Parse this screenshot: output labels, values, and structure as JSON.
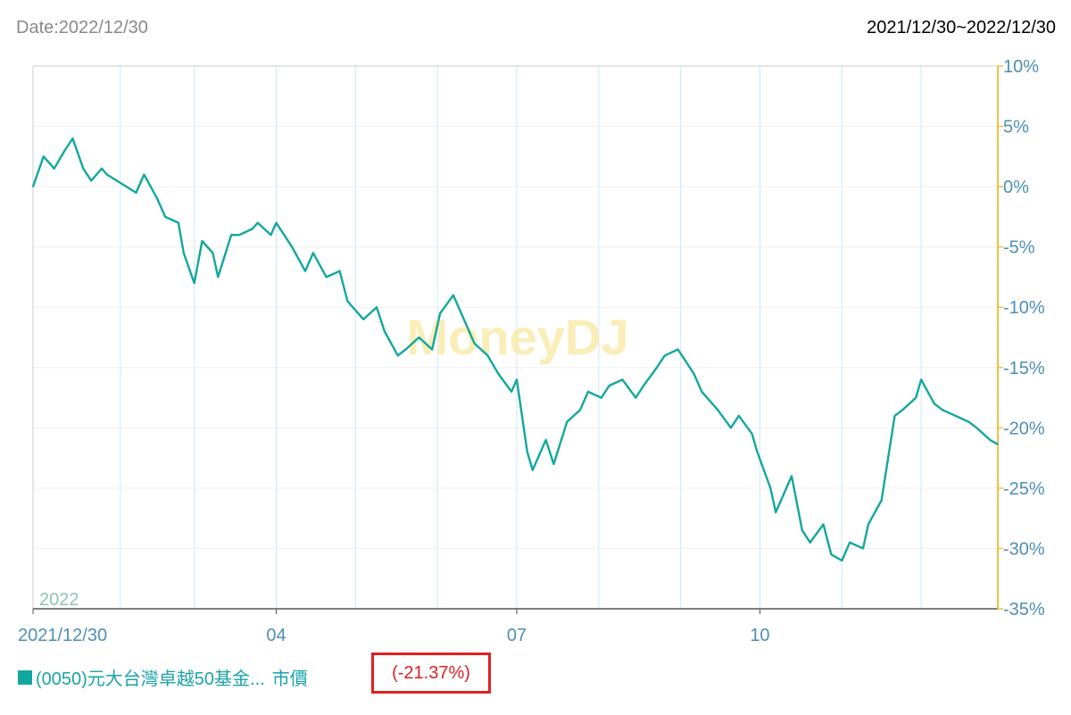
{
  "header": {
    "date_label": "Date:2022/12/30",
    "range_label": "2021/12/30~2022/12/30"
  },
  "legend": {
    "series_name": "(0050)元大台灣卓越50基金...",
    "price_type": "市價",
    "change": "(-21.37%)",
    "swatch_color": "#12a89d"
  },
  "colors": {
    "line": "#12a89d",
    "right_axis": "#f0c040",
    "watermark": "#f7e9a0",
    "highlight_box": "#e02020"
  },
  "chart_data": {
    "type": "line",
    "watermark": "MoneyDJ",
    "year_label": "2022",
    "x_tick_labels": [
      "2021/12/30",
      "04",
      "07",
      "10"
    ],
    "y_tick_labels": [
      "10%",
      "5%",
      "0%",
      "-5%",
      "-10%",
      "-15%",
      "-20%",
      "-25%",
      "-30%",
      "-35%"
    ],
    "ylim": [
      -35,
      10
    ],
    "xlim": [
      "2021-12-30",
      "2022-12-30"
    ],
    "grid": true,
    "y_axis_side": "right",
    "series": [
      {
        "x": [
          "2021-12-30",
          "2022-01-03",
          "2022-01-07",
          "2022-01-11",
          "2022-01-14",
          "2022-01-18",
          "2022-01-21",
          "2022-01-25",
          "2022-01-27",
          "2022-02-07",
          "2022-02-10",
          "2022-02-15",
          "2022-02-18",
          "2022-02-23",
          "2022-02-25",
          "2022-03-01",
          "2022-03-04",
          "2022-03-08",
          "2022-03-10",
          "2022-03-15",
          "2022-03-18",
          "2022-03-23",
          "2022-03-25",
          "2022-03-30",
          "2022-04-01",
          "2022-04-07",
          "2022-04-12",
          "2022-04-15",
          "2022-04-20",
          "2022-04-25",
          "2022-04-28",
          "2022-05-04",
          "2022-05-09",
          "2022-05-12",
          "2022-05-17",
          "2022-05-20",
          "2022-05-25",
          "2022-05-30",
          "2022-06-02",
          "2022-06-07",
          "2022-06-10",
          "2022-06-15",
          "2022-06-20",
          "2022-06-24",
          "2022-06-29",
          "2022-07-01",
          "2022-07-05",
          "2022-07-07",
          "2022-07-12",
          "2022-07-15",
          "2022-07-20",
          "2022-07-25",
          "2022-07-28",
          "2022-08-02",
          "2022-08-05",
          "2022-08-10",
          "2022-08-15",
          "2022-08-18",
          "2022-08-23",
          "2022-08-26",
          "2022-08-31",
          "2022-09-06",
          "2022-09-09",
          "2022-09-15",
          "2022-09-20",
          "2022-09-23",
          "2022-09-28",
          "2022-09-30",
          "2022-10-05",
          "2022-10-07",
          "2022-10-13",
          "2022-10-17",
          "2022-10-20",
          "2022-10-25",
          "2022-10-28",
          "2022-11-01",
          "2022-11-04",
          "2022-11-09",
          "2022-11-11",
          "2022-11-16",
          "2022-11-21",
          "2022-11-24",
          "2022-11-29",
          "2022-12-01",
          "2022-12-06",
          "2022-12-09",
          "2022-12-14",
          "2022-12-19",
          "2022-12-22",
          "2022-12-27",
          "2022-12-30"
        ],
        "values": [
          0,
          2.5,
          1.5,
          3,
          4,
          1.5,
          0.5,
          1.5,
          1,
          -0.5,
          1,
          -1,
          -2.5,
          -3,
          -5.5,
          -8,
          -4.5,
          -5.5,
          -7.5,
          -4,
          -4,
          -3.5,
          -3,
          -4,
          -3,
          -5,
          -7,
          -5.5,
          -7.5,
          -7,
          -9.5,
          -11,
          -10,
          -12,
          -14,
          -13.5,
          -12.5,
          -13.5,
          -10.5,
          -9,
          -10.5,
          -13,
          -14,
          -15.5,
          -17,
          -16,
          -22,
          -23.5,
          -21,
          -23,
          -19.5,
          -18.5,
          -17,
          -17.5,
          -16.5,
          -16,
          -17.5,
          -16.5,
          -15,
          -14,
          -13.5,
          -15.5,
          -17,
          -18.5,
          -20,
          -19,
          -20.5,
          -22,
          -25,
          -27,
          -24,
          -28.5,
          -29.5,
          -28,
          -30.5,
          -31,
          -29.5,
          -30,
          -28,
          -26,
          -19,
          -18.5,
          -17.5,
          -16,
          -18,
          -18.5,
          -19,
          -19.5,
          -20,
          -21,
          -21.37
        ]
      }
    ]
  }
}
